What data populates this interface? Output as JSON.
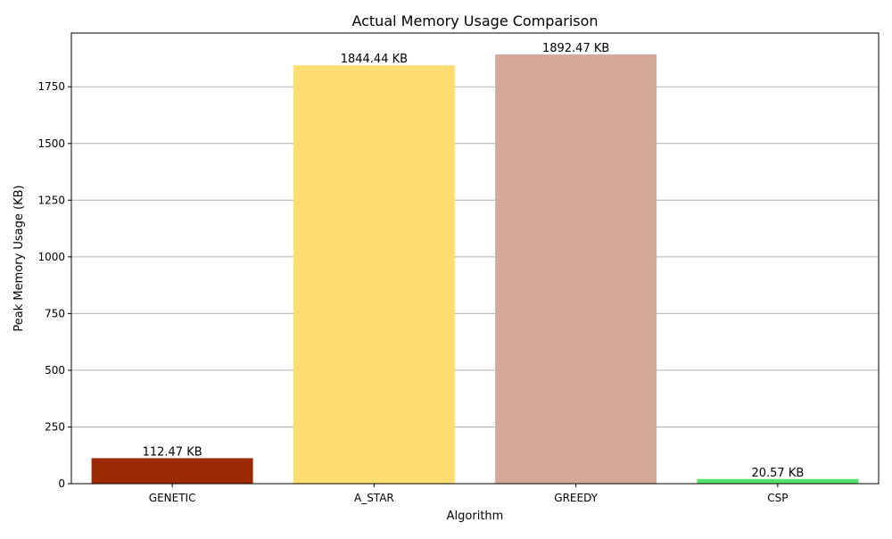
{
  "chart_data": {
    "type": "bar",
    "title": "Actual Memory Usage Comparison",
    "xlabel": "Algorithm",
    "ylabel": "Peak Memory Usage (KB)",
    "categories": [
      "GENETIC",
      "A_STAR",
      "GREEDY",
      "CSP"
    ],
    "values": [
      112.47,
      1844.44,
      1892.47,
      20.57
    ],
    "value_labels": [
      "112.47 KB",
      "1844.44 KB",
      "1892.47 KB",
      "20.57 KB"
    ],
    "colors": [
      "#9b2a04",
      "#ffdd70",
      "#d5a99a",
      "#55e06a"
    ],
    "ylim": [
      0,
      1987
    ],
    "yticks": [
      0,
      250,
      500,
      750,
      1000,
      1250,
      1500,
      1750
    ],
    "ytick_labels": [
      "0",
      "250",
      "500",
      "750",
      "1000",
      "1250",
      "1500",
      "1750"
    ],
    "grid": "y-axis only",
    "legend": "none"
  }
}
